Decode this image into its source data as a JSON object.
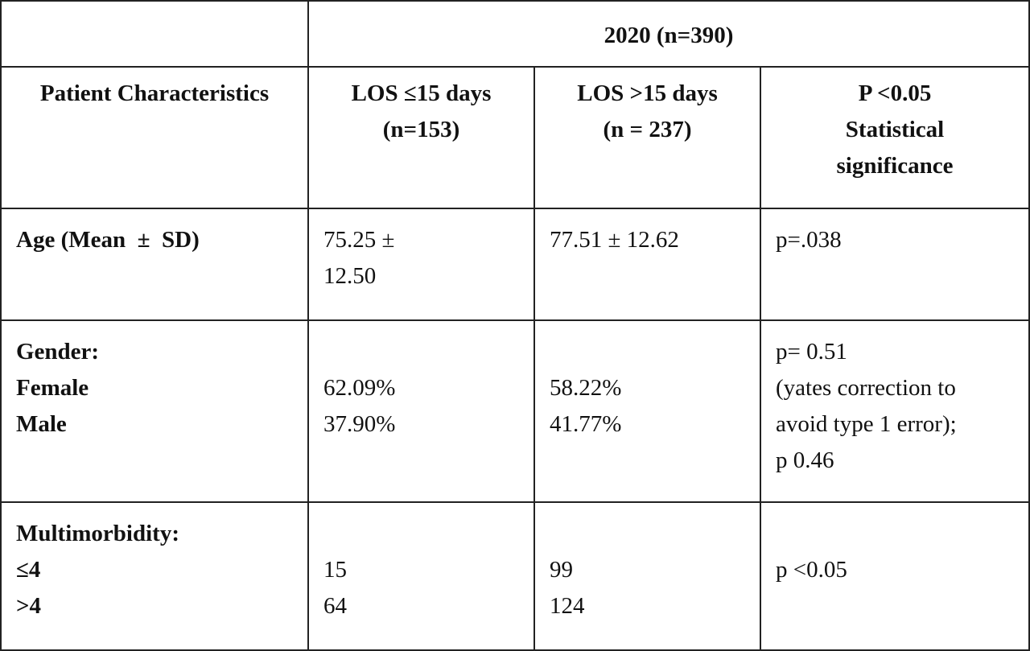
{
  "table": {
    "group_header": "2020 (n=390)",
    "headers": {
      "characteristics": "Patient Characteristics",
      "los_short": [
        "LOS ≤15 days",
        "(n=153)"
      ],
      "los_long": [
        "LOS >15 days",
        "(n = 237)"
      ],
      "significance": [
        "P <0.05",
        "Statistical",
        "significance"
      ]
    },
    "rows": {
      "age": {
        "label": "Age (Mean  ±  SD)",
        "los_short": [
          "75.25 ±",
          "12.50"
        ],
        "los_long": "77.51 ± 12.62",
        "p_value": "p=.038"
      },
      "gender": {
        "label": "Gender:",
        "sub_labels": [
          "Female",
          "Male"
        ],
        "los_short": [
          "62.09%",
          "37.90%"
        ],
        "los_long": [
          "58.22%",
          "41.77%"
        ],
        "p_value": [
          "p= 0.51",
          "(yates correction to",
          "avoid type 1 error);",
          "p 0.46"
        ]
      },
      "multimorbidity": {
        "label": "Multimorbidity:",
        "sub_labels": [
          "≤4",
          ">4"
        ],
        "los_short": [
          "15",
          "64"
        ],
        "los_long": [
          "99",
          "124"
        ],
        "p_value": "p <0.05"
      }
    }
  }
}
